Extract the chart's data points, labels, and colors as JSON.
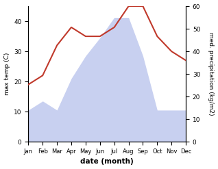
{
  "months": [
    "Jan",
    "Feb",
    "Mar",
    "Apr",
    "May",
    "Jun",
    "Jul",
    "Aug",
    "Sep",
    "Oct",
    "Nov",
    "Dec"
  ],
  "temp": [
    19,
    22,
    32,
    38,
    35,
    35,
    38,
    45,
    45,
    35,
    30,
    27
  ],
  "precip": [
    14,
    18,
    14,
    28,
    38,
    46,
    55,
    55,
    38,
    14,
    14,
    14
  ],
  "temp_color": "#c0392b",
  "precip_fill_color": "#c8d0f0",
  "ylabel_left": "max temp (C)",
  "ylabel_right": "med. precipitation (kg/m2)",
  "xlabel": "date (month)",
  "ylim_left": [
    0,
    45
  ],
  "ylim_right": [
    0,
    60
  ],
  "yticks_left": [
    0,
    10,
    20,
    30,
    40
  ],
  "yticks_right": [
    0,
    10,
    20,
    30,
    40,
    50,
    60
  ]
}
